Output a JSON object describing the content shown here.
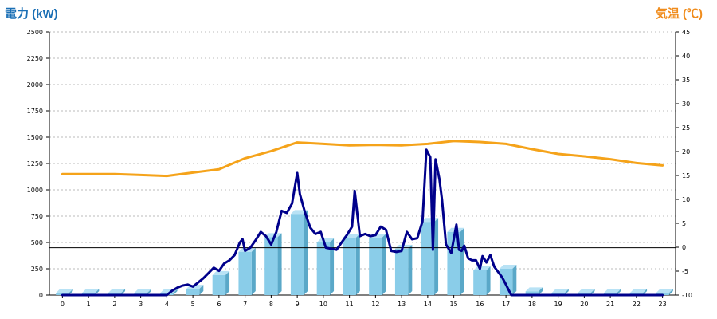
{
  "chart_data": {
    "type": "bar",
    "y_left_title": "電力 (kW)",
    "y_right_title": "気温 (℃)",
    "categories": [
      "0",
      "1",
      "2",
      "3",
      "4",
      "5",
      "6",
      "7",
      "8",
      "9",
      "10",
      "11",
      "12",
      "13",
      "14",
      "15",
      "16",
      "17",
      "18",
      "19",
      "20",
      "21",
      "22",
      "23"
    ],
    "ylim_left": [
      0,
      2500
    ],
    "ylim_right": [
      -10,
      45
    ],
    "yticks_left": [
      0,
      250,
      500,
      750,
      1000,
      1250,
      1500,
      1750,
      2000,
      2250,
      2500
    ],
    "yticks_right": [
      -10,
      -5,
      0,
      5,
      10,
      15,
      20,
      25,
      30,
      35,
      40,
      45
    ],
    "grid": true,
    "series": [
      {
        "kind": "bar",
        "axis": "left",
        "values": [
          20,
          20,
          20,
          20,
          20,
          60,
          190,
          410,
          550,
          770,
          500,
          545,
          545,
          440,
          695,
          600,
          235,
          250,
          35,
          20,
          20,
          20,
          20,
          20
        ]
      },
      {
        "kind": "line",
        "axis": "left",
        "color": "#00008b",
        "x": [
          0,
          0.5,
          1,
          1.5,
          2,
          2.5,
          3,
          3.5,
          4,
          4.2,
          4.4,
          4.6,
          4.8,
          5,
          5.2,
          5.4,
          5.6,
          5.8,
          6,
          6.2,
          6.4,
          6.6,
          6.8,
          6.9,
          7,
          7.2,
          7.4,
          7.6,
          7.8,
          8,
          8.2,
          8.4,
          8.6,
          8.8,
          9,
          9.1,
          9.3,
          9.5,
          9.7,
          9.9,
          10.1,
          10.3,
          10.5,
          10.7,
          10.9,
          11.1,
          11.2,
          11.4,
          11.6,
          11.8,
          12,
          12.2,
          12.4,
          12.6,
          12.8,
          13,
          13.2,
          13.4,
          13.6,
          13.8,
          13.95,
          14.1,
          14.2,
          14.3,
          14.45,
          14.55,
          14.7,
          14.9,
          15.1,
          15.2,
          15.3,
          15.4,
          15.55,
          15.7,
          15.85,
          16,
          16.1,
          16.25,
          16.4,
          16.55,
          16.7,
          16.85,
          17,
          17.2,
          17.4,
          17.6,
          17.8,
          18,
          18.5,
          19,
          20,
          21,
          22,
          23
        ],
        "values": [
          0,
          0,
          0,
          0,
          0,
          0,
          0,
          0,
          0,
          40,
          70,
          90,
          100,
          80,
          120,
          160,
          210,
          260,
          230,
          300,
          330,
          380,
          500,
          530,
          420,
          450,
          520,
          600,
          560,
          480,
          600,
          800,
          780,
          870,
          1160,
          960,
          780,
          640,
          580,
          600,
          450,
          440,
          430,
          500,
          570,
          650,
          990,
          560,
          580,
          560,
          570,
          650,
          620,
          420,
          410,
          420,
          600,
          530,
          540,
          700,
          1380,
          1310,
          430,
          1290,
          1100,
          900,
          480,
          400,
          670,
          430,
          420,
          470,
          350,
          330,
          330,
          250,
          370,
          310,
          380,
          270,
          220,
          170,
          100,
          0,
          0,
          0,
          0,
          0,
          0,
          0,
          0,
          0,
          0,
          0
        ]
      },
      {
        "kind": "line",
        "axis": "right",
        "color": "#f5a31a",
        "x": [
          0,
          1,
          2,
          3,
          4,
          5,
          6,
          7,
          8,
          9,
          10,
          11,
          12,
          13,
          14,
          15,
          16,
          17,
          18,
          19,
          20,
          21,
          22,
          23
        ],
        "values": [
          15.3,
          15.3,
          15.3,
          15.1,
          14.9,
          15.6,
          16.3,
          18.6,
          20.1,
          21.9,
          21.6,
          21.3,
          21.4,
          21.3,
          21.6,
          22.2,
          22.0,
          21.6,
          20.5,
          19.5,
          19.0,
          18.4,
          17.6,
          17.1
        ]
      }
    ],
    "reference_line_left": 450
  }
}
